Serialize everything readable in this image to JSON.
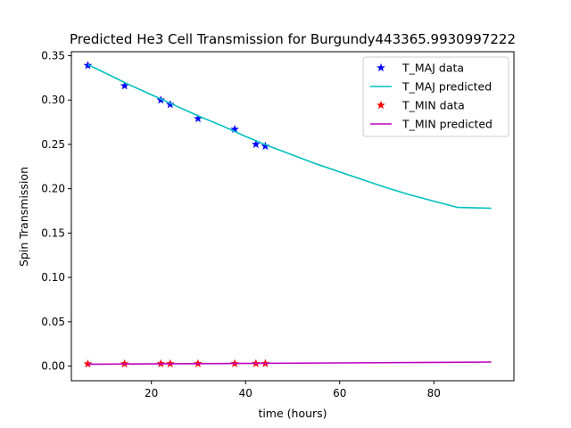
{
  "chart_data": {
    "type": "line",
    "title": "Predicted He3 Cell Transmission for Burgundy443365.9930997222",
    "xlabel": "time (hours)",
    "ylabel": "Spin Transmission",
    "xlim": [
      3,
      97
    ],
    "ylim": [
      -0.0165,
      0.3545
    ],
    "xticks": [
      20,
      40,
      60,
      80
    ],
    "yticks": [
      0.0,
      0.05,
      0.1,
      0.15,
      0.2,
      0.25,
      0.3,
      0.35
    ],
    "xtick_labels": [
      "20",
      "40",
      "60",
      "80"
    ],
    "ytick_labels": [
      "0.00",
      "0.05",
      "0.10",
      "0.15",
      "0.20",
      "0.25",
      "0.30",
      "0.35"
    ],
    "grid": false,
    "legend_position": "top-right",
    "series": [
      {
        "name": "T_MAJ data",
        "kind": "scatter",
        "marker": "star",
        "color": "#0000ff",
        "x": [
          6.5,
          14.3,
          22.0,
          24.0,
          29.9,
          37.7,
          42.2,
          44.2
        ],
        "y": [
          0.339,
          0.316,
          0.3,
          0.295,
          0.279,
          0.267,
          0.25,
          0.248
        ]
      },
      {
        "name": "T_MAJ predicted",
        "kind": "line",
        "color": "#00bfbf",
        "x": [
          6.5,
          10,
          15,
          20,
          25,
          30,
          35,
          40,
          45,
          50,
          55,
          60,
          65,
          70,
          75,
          80,
          85,
          92.2
        ],
        "y": [
          0.34,
          0.331,
          0.318,
          0.306,
          0.294,
          0.282,
          0.271,
          0.259,
          0.248,
          0.238,
          0.228,
          0.219,
          0.21,
          0.201,
          0.193,
          0.186,
          0.179,
          0.178
        ]
      },
      {
        "name": "T_MIN data",
        "kind": "scatter",
        "marker": "star",
        "color": "#ff0000",
        "x": [
          6.5,
          14.3,
          22.0,
          24.0,
          29.9,
          37.7,
          42.2,
          44.2
        ],
        "y": [
          0.0025,
          0.0026,
          0.0027,
          0.0027,
          0.0028,
          0.0028,
          0.0029,
          0.0029
        ]
      },
      {
        "name": "T_MIN predicted",
        "kind": "line",
        "color": "#bf00bf",
        "x": [
          6.5,
          20,
          40,
          60,
          80,
          92.2
        ],
        "y": [
          0.0022,
          0.0025,
          0.003,
          0.0036,
          0.0042,
          0.0046
        ]
      }
    ]
  }
}
